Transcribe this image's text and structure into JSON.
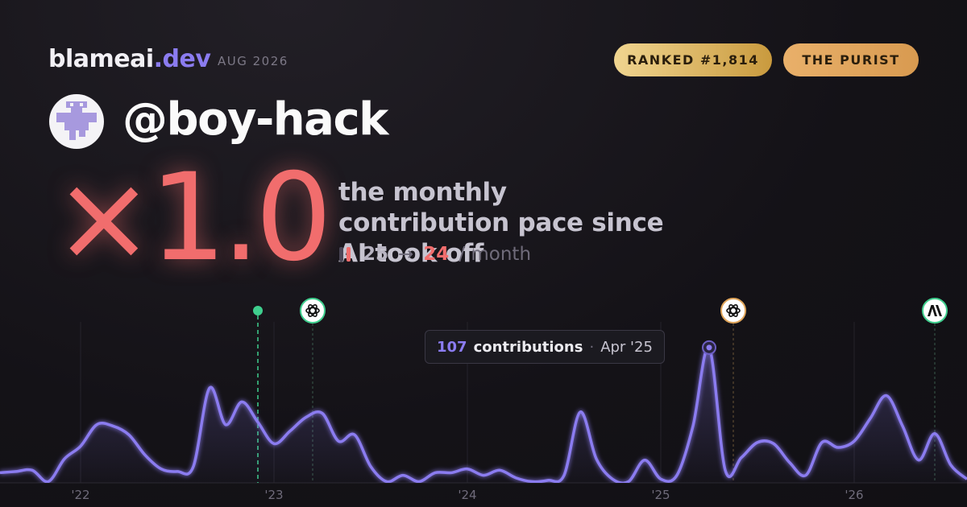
{
  "brand": {
    "name": "blameai",
    "tld": ".dev",
    "date": "AUG 2026"
  },
  "badges": [
    "RANKED #1,814",
    "THE PURIST"
  ],
  "handle": "@boy-hack",
  "multiplier": "×1.0",
  "description": "the monthly contribution pace since AI took off",
  "pace": {
    "before": 25,
    "arrow": "→",
    "after": 24,
    "unit": "/ month"
  },
  "chart_data": {
    "type": "area",
    "color": "#8b7cf0",
    "grid": true,
    "ylim": [
      0,
      140
    ],
    "categories": [
      null,
      null,
      null,
      null,
      null,
      "'22",
      null,
      null,
      null,
      null,
      null,
      null,
      null,
      null,
      null,
      null,
      null,
      "'23",
      null,
      null,
      null,
      null,
      null,
      null,
      null,
      null,
      null,
      null,
      null,
      "'24",
      null,
      null,
      null,
      null,
      null,
      null,
      null,
      null,
      null,
      null,
      null,
      "'25",
      null,
      null,
      null,
      null,
      null,
      null,
      null,
      null,
      null,
      null,
      null,
      "'26",
      null,
      null,
      null,
      null,
      null,
      null,
      null
    ],
    "values": [
      8,
      9,
      10,
      1,
      19,
      29,
      46,
      45,
      38,
      22,
      11,
      9,
      13,
      75,
      46,
      64,
      48,
      31,
      41,
      52,
      55,
      33,
      38,
      13,
      1,
      6,
      1,
      8,
      8,
      11,
      6,
      10,
      4,
      1,
      2,
      6,
      56,
      19,
      3,
      1,
      18,
      3,
      6,
      45,
      107,
      10,
      20,
      32,
      31,
      16,
      6,
      32,
      28,
      33,
      51,
      69,
      45,
      18,
      39,
      14,
      3
    ],
    "tooltip": {
      "index": 44,
      "label": "contributions",
      "date": "Apr '25"
    }
  }
}
